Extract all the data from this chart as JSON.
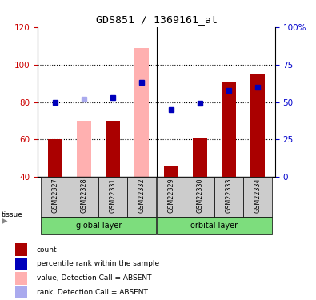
{
  "title": "GDS851 / 1369161_at",
  "samples": [
    "GSM22327",
    "GSM22328",
    "GSM22331",
    "GSM22332",
    "GSM22329",
    "GSM22330",
    "GSM22333",
    "GSM22334"
  ],
  "ylim_left": [
    40,
    120
  ],
  "ylim_right": [
    0,
    100
  ],
  "yticks_left": [
    40,
    60,
    80,
    100,
    120
  ],
  "yticks_right": [
    0,
    25,
    50,
    75,
    100
  ],
  "yticklabels_right": [
    "0",
    "25",
    "50",
    "75",
    "100%"
  ],
  "red_bars": [
    60,
    null,
    70,
    null,
    46,
    61,
    91,
    95
  ],
  "pink_bars": [
    null,
    70,
    null,
    109,
    null,
    null,
    null,
    null
  ],
  "blue_squares_pct": [
    50,
    null,
    53,
    63,
    45,
    49,
    58,
    60
  ],
  "lightblue_squares_pct": [
    null,
    52,
    null,
    63,
    null,
    null,
    null,
    null
  ],
  "bar_width": 0.5,
  "red_color": "#aa0000",
  "pink_color": "#ffb0b0",
  "blue_color": "#0000bb",
  "lightblue_color": "#aaaaee",
  "group_label_bg": "#7ddd7d",
  "sample_bg": "#cccccc",
  "left_axis_color": "#cc0000",
  "right_axis_color": "#0000cc",
  "tissue_label": "tissue",
  "legend_items": [
    {
      "label": "count",
      "color": "#aa0000"
    },
    {
      "label": "percentile rank within the sample",
      "color": "#0000bb"
    },
    {
      "label": "value, Detection Call = ABSENT",
      "color": "#ffb0b0"
    },
    {
      "label": "rank, Detection Call = ABSENT",
      "color": "#aaaaee"
    }
  ]
}
